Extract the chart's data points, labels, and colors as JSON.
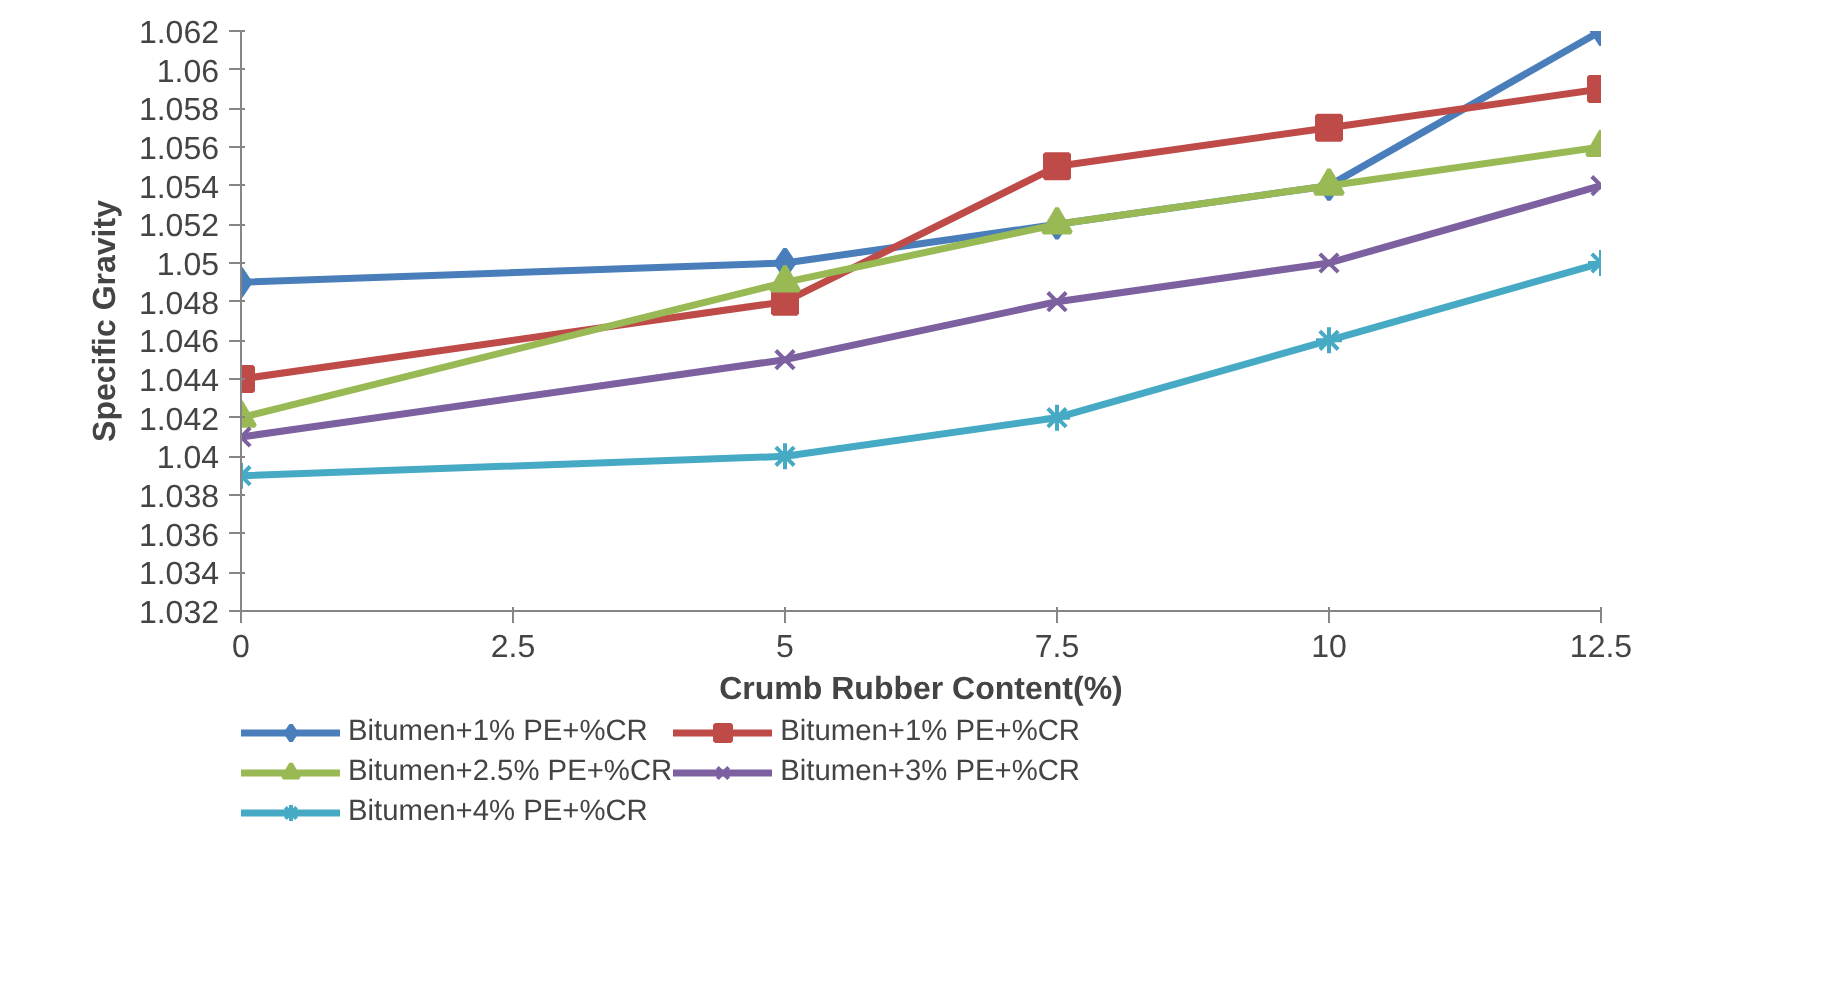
{
  "chart_data": {
    "type": "line",
    "xlabel": "Crumb Rubber Content(%)",
    "ylabel": "Specific Gravity",
    "x": [
      0,
      5,
      7.5,
      10,
      12.5
    ],
    "xlim": [
      0,
      12.5
    ],
    "xticks": [
      0,
      2.5,
      5,
      7.5,
      10,
      12.5
    ],
    "ylim": [
      1.032,
      1.062
    ],
    "yticks": [
      1.032,
      1.034,
      1.036,
      1.038,
      1.04,
      1.042,
      1.044,
      1.046,
      1.048,
      1.05,
      1.052,
      1.054,
      1.056,
      1.058,
      1.06,
      1.062
    ],
    "grid": false,
    "legend": "bottom",
    "series": [
      {
        "name": "Bitumen+1% PE+%CR",
        "color": "#4a7ebb",
        "marker": "diamond",
        "values": [
          1.049,
          1.05,
          1.052,
          1.054,
          1.062
        ]
      },
      {
        "name": "Bitumen+1% PE+%CR",
        "color": "#be4b48",
        "marker": "square",
        "values": [
          1.044,
          1.048,
          1.055,
          1.057,
          1.059
        ]
      },
      {
        "name": "Bitumen+2.5% PE+%CR",
        "color": "#98b954",
        "marker": "triangle",
        "values": [
          1.042,
          1.049,
          1.052,
          1.054,
          1.056
        ]
      },
      {
        "name": "Bitumen+3% PE+%CR",
        "color": "#7d60a0",
        "marker": "x",
        "values": [
          1.041,
          1.045,
          1.048,
          1.05,
          1.054
        ]
      },
      {
        "name": "Bitumen+4% PE+%CR",
        "color": "#46aac5",
        "marker": "cross",
        "values": [
          1.039,
          1.04,
          1.042,
          1.046,
          1.05
        ]
      }
    ]
  }
}
